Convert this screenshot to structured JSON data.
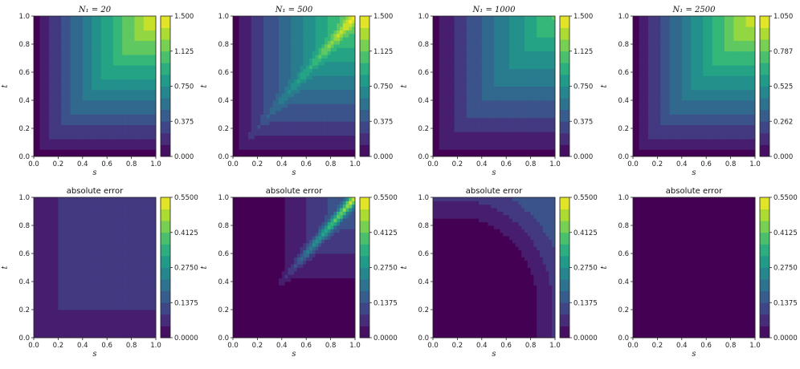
{
  "chart_data": [
    {
      "type": "heatmap",
      "id": "n20",
      "title": "N₁ = 20",
      "xlabel": "s",
      "ylabel": "t",
      "xlim": [
        0,
        1
      ],
      "ylim": [
        0,
        1
      ],
      "x_ticks": [
        "0.0",
        "0.2",
        "0.4",
        "0.6",
        "0.8",
        "1.0"
      ],
      "y_ticks": [
        "0.0",
        "0.2",
        "0.4",
        "0.6",
        "0.8",
        "1.0"
      ],
      "colorbar_range": [
        0,
        1.5
      ],
      "colorbar_ticks": [
        "0.000",
        "0.375",
        "0.750",
        "1.125",
        "1.500"
      ],
      "cmap": "viridis",
      "field": "min_kernel",
      "peak": 1.45
    },
    {
      "type": "heatmap",
      "id": "n500",
      "title": "N₁ = 500",
      "xlabel": "s",
      "ylabel": "t",
      "xlim": [
        0,
        1
      ],
      "ylim": [
        0,
        1
      ],
      "x_ticks": [
        "0.0",
        "0.2",
        "0.4",
        "0.6",
        "0.8",
        "1.0"
      ],
      "y_ticks": [
        "0.0",
        "0.2",
        "0.4",
        "0.6",
        "0.8",
        "1.0"
      ],
      "colorbar_range": [
        0,
        1.5
      ],
      "colorbar_ticks": [
        "0.000",
        "0.375",
        "0.750",
        "1.125",
        "1.500"
      ],
      "cmap": "viridis",
      "field": "min_kernel_ridge",
      "peak": 1.5
    },
    {
      "type": "heatmap",
      "id": "n1000",
      "title": "N₁ = 1000",
      "xlabel": "s",
      "ylabel": "t",
      "xlim": [
        0,
        1
      ],
      "ylim": [
        0,
        1
      ],
      "x_ticks": [
        "0.0",
        "0.2",
        "0.4",
        "0.6",
        "0.8",
        "1.0"
      ],
      "y_ticks": [
        "0.0",
        "0.2",
        "0.4",
        "0.6",
        "0.8",
        "1.0"
      ],
      "colorbar_range": [
        0,
        1.5
      ],
      "colorbar_ticks": [
        "0.000",
        "0.375",
        "0.750",
        "1.125",
        "1.500"
      ],
      "cmap": "viridis",
      "field": "min_kernel",
      "peak": 1.1
    },
    {
      "type": "heatmap",
      "id": "n2500",
      "title": "N₁ = 2500",
      "xlabel": "s",
      "ylabel": "t",
      "xlim": [
        0,
        1
      ],
      "ylim": [
        0,
        1
      ],
      "x_ticks": [
        "0.0",
        "0.2",
        "0.4",
        "0.6",
        "0.8",
        "1.0"
      ],
      "y_ticks": [
        "0.0",
        "0.2",
        "0.4",
        "0.6",
        "0.8",
        "1.0"
      ],
      "colorbar_range": [
        0,
        1.05
      ],
      "colorbar_ticks": [
        "0.000",
        "0.262",
        "0.525",
        "0.787",
        "1.050"
      ],
      "cmap": "viridis",
      "field": "min_kernel",
      "peak": 1.0
    },
    {
      "type": "heatmap",
      "id": "err20",
      "title": "absolute error",
      "xlabel": "s",
      "ylabel": "t",
      "xlim": [
        0,
        1
      ],
      "ylim": [
        0,
        1
      ],
      "x_ticks": [
        "0.0",
        "0.2",
        "0.4",
        "0.6",
        "0.8",
        "1.0"
      ],
      "y_ticks": [
        "0.0",
        "0.2",
        "0.4",
        "0.6",
        "0.8",
        "1.0"
      ],
      "colorbar_range": [
        0,
        0.55
      ],
      "colorbar_ticks": [
        "0.0000",
        "0.1375",
        "0.2750",
        "0.4125",
        "0.5500"
      ],
      "cmap": "viridis",
      "field": "error_band",
      "peak": 0.1
    },
    {
      "type": "heatmap",
      "id": "err500",
      "title": "absolute error",
      "xlabel": "s",
      "ylabel": "t",
      "xlim": [
        0,
        1
      ],
      "ylim": [
        0,
        1
      ],
      "x_ticks": [
        "0.0",
        "0.2",
        "0.4",
        "0.6",
        "0.8",
        "1.0"
      ],
      "y_ticks": [
        "0.0",
        "0.2",
        "0.4",
        "0.6",
        "0.8",
        "1.0"
      ],
      "colorbar_range": [
        0,
        0.55
      ],
      "colorbar_ticks": [
        "0.0000",
        "0.1375",
        "0.2750",
        "0.4125",
        "0.5500"
      ],
      "cmap": "viridis",
      "field": "error_ridge",
      "peak": 0.45
    },
    {
      "type": "heatmap",
      "id": "err1000",
      "title": "absolute error",
      "xlabel": "s",
      "ylabel": "t",
      "xlim": [
        0,
        1
      ],
      "ylim": [
        0,
        1
      ],
      "x_ticks": [
        "0.0",
        "0.2",
        "0.4",
        "0.6",
        "0.8",
        "1.0"
      ],
      "y_ticks": [
        "0.0",
        "0.2",
        "0.4",
        "0.6",
        "0.8",
        "1.0"
      ],
      "colorbar_range": [
        0,
        0.55
      ],
      "colorbar_ticks": [
        "0.0000",
        "0.1375",
        "0.2750",
        "0.4125",
        "0.5500"
      ],
      "cmap": "viridis",
      "field": "error_corner",
      "peak": 0.15
    },
    {
      "type": "heatmap",
      "id": "err2500",
      "title": "absolute error",
      "xlabel": "s",
      "ylabel": "t",
      "xlim": [
        0,
        1
      ],
      "ylim": [
        0,
        1
      ],
      "x_ticks": [
        "0.0",
        "0.2",
        "0.4",
        "0.6",
        "0.8",
        "1.0"
      ],
      "y_ticks": [
        "0.0",
        "0.2",
        "0.4",
        "0.6",
        "0.8",
        "1.0"
      ],
      "colorbar_range": [
        0,
        0.55
      ],
      "colorbar_ticks": [
        "0.0000",
        "0.1375",
        "0.2750",
        "0.4125",
        "0.5500"
      ],
      "cmap": "viridis",
      "field": "zero",
      "peak": 0.0
    }
  ]
}
